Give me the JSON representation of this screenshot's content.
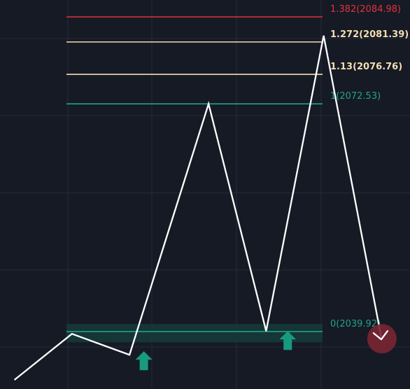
{
  "chart_data": {
    "type": "line",
    "title": "",
    "xlabel": "",
    "ylabel": "",
    "grid": true,
    "colors": {
      "background": "#161a25",
      "grid": "#262b38",
      "price_line": "#ffffff",
      "level_red": "#e0343c",
      "level_cream": "#f3deb0",
      "level_teal": "#1ea48a",
      "zone_fill": "#153b39",
      "arrow_up": "#169b7e",
      "marker_circle": "#7a2532"
    },
    "fib_levels": [
      {
        "ratio": 1.382,
        "price": 2084.98,
        "label": "1.382(2084.98)",
        "color": "#e0343c",
        "bold": false
      },
      {
        "ratio": 1.272,
        "price": 2081.39,
        "label": "1.272(2081.39)",
        "color": "#f3deb0",
        "bold": true
      },
      {
        "ratio": 1.13,
        "price": 2076.76,
        "label": "1.13(2076.76)",
        "color": "#f3deb0",
        "bold": true
      },
      {
        "ratio": 1,
        "price": 2072.53,
        "label": "1(2072.53)",
        "color": "#1ea48a",
        "bold": false
      },
      {
        "ratio": 0,
        "price": 2039.92,
        "label": "0(2039.92)",
        "color": "#1ea48a",
        "bold": false
      }
    ],
    "zone": {
      "from": 2039.4,
      "to": 2039.92
    },
    "path": [
      {
        "t": 0,
        "price": 2033.0
      },
      {
        "t": 8,
        "price": 2039.6
      },
      {
        "t": 16,
        "price": 2036.6
      },
      {
        "t": 27,
        "price": 2072.53
      },
      {
        "t": 35,
        "price": 2040.0
      },
      {
        "t": 43,
        "price": 2082.3
      },
      {
        "t": 51,
        "price": 2039.1
      }
    ],
    "signals": [
      {
        "type": "buy",
        "t": 18,
        "price": 2035.8
      },
      {
        "type": "buy",
        "t": 38,
        "price": 2038.7
      },
      {
        "type": "target",
        "t": 51,
        "price": 2039.1
      }
    ],
    "x_range": [
      -2,
      55
    ],
    "y_range": [
      2031.7,
      2087.4
    ]
  }
}
